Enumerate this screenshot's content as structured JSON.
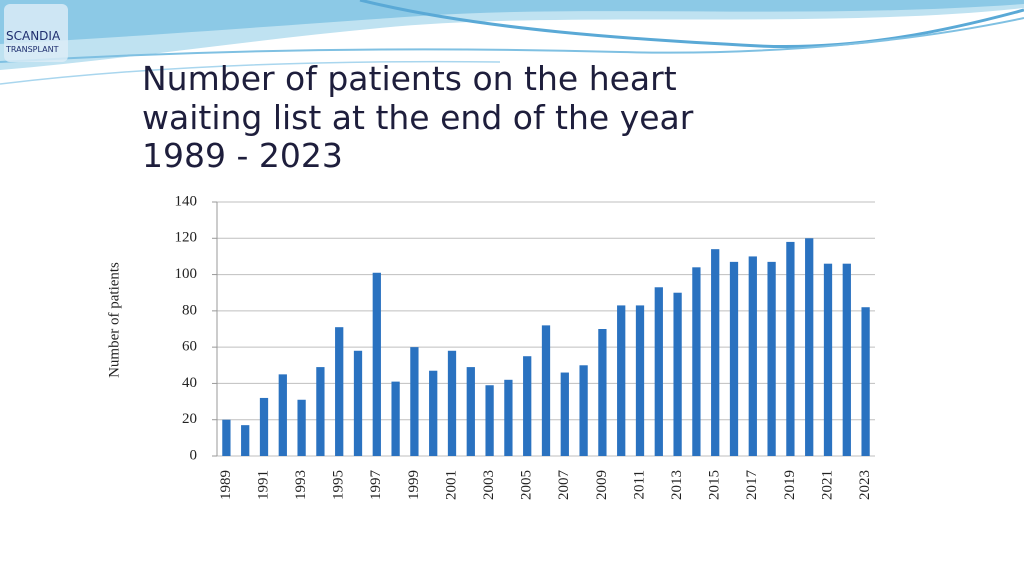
{
  "logo": {
    "name": "SCANDIA",
    "subtitle": "TRANSPLANT"
  },
  "chart_data": {
    "type": "bar",
    "title": [
      "Number of patients on the heart",
      "waiting list at the end of the year",
      "1989 - 2023"
    ],
    "y_label": "Number of patients",
    "categories": [
      "1989",
      null,
      "1991",
      null,
      "1993",
      null,
      "1995",
      null,
      "1997",
      null,
      "1999",
      null,
      "2001",
      null,
      "2003",
      null,
      "2005",
      null,
      "2007",
      null,
      "2009",
      null,
      "2011",
      null,
      "2013",
      null,
      "2015",
      null,
      "2017",
      null,
      "2019",
      null,
      "2021",
      null,
      "2023"
    ],
    "values": [
      20,
      17,
      32,
      45,
      31,
      49,
      71,
      58,
      101,
      41,
      60,
      47,
      58,
      49,
      39,
      42,
      55,
      72,
      46,
      50,
      70,
      83,
      83,
      93,
      90,
      104,
      114,
      107,
      110,
      107,
      118,
      120,
      106,
      106,
      82
    ],
    "color": "#2a72c0",
    "ylim": [
      0,
      140
    ],
    "yticks": [
      0,
      20,
      40,
      60,
      80,
      100,
      120,
      140
    ],
    "grid": true
  }
}
